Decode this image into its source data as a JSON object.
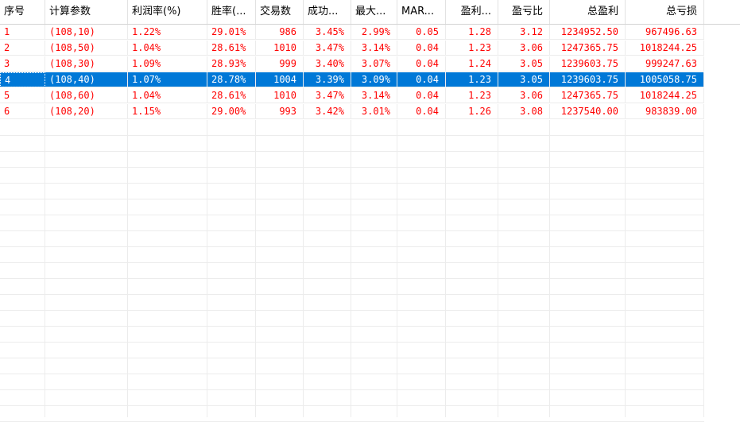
{
  "columns": [
    {
      "label": "序号"
    },
    {
      "label": "计算参数"
    },
    {
      "label": "利润率(%)"
    },
    {
      "label": "胜率(..."
    },
    {
      "label": "交易数"
    },
    {
      "label": "成功..."
    },
    {
      "label": "最大..."
    },
    {
      "label": "MAR..."
    },
    {
      "label": "盈利..."
    },
    {
      "label": "盈亏比"
    },
    {
      "label": "总盈利"
    },
    {
      "label": "总亏损"
    }
  ],
  "rows": [
    {
      "cells": [
        "1",
        "(108,10)",
        "1.22%",
        "29.01%",
        "986",
        "3.45%",
        "2.99%",
        "0.05",
        "1.28",
        "3.12",
        "1234952.50",
        "967496.63"
      ],
      "selected": false
    },
    {
      "cells": [
        "2",
        "(108,50)",
        "1.04%",
        "28.61%",
        "1010",
        "3.47%",
        "3.14%",
        "0.04",
        "1.23",
        "3.06",
        "1247365.75",
        "1018244.25"
      ],
      "selected": false
    },
    {
      "cells": [
        "3",
        "(108,30)",
        "1.09%",
        "28.93%",
        "999",
        "3.40%",
        "3.07%",
        "0.04",
        "1.24",
        "3.05",
        "1239603.75",
        "999247.63"
      ],
      "selected": false
    },
    {
      "cells": [
        "4",
        "(108,40)",
        "1.07%",
        "28.78%",
        "1004",
        "3.39%",
        "3.09%",
        "0.04",
        "1.23",
        "3.05",
        "1239603.75",
        "1005058.75"
      ],
      "selected": true
    },
    {
      "cells": [
        "5",
        "(108,60)",
        "1.04%",
        "28.61%",
        "1010",
        "3.47%",
        "3.14%",
        "0.04",
        "1.23",
        "3.06",
        "1247365.75",
        "1018244.25"
      ],
      "selected": false
    },
    {
      "cells": [
        "6",
        "(108,20)",
        "1.15%",
        "29.00%",
        "993",
        "3.42%",
        "3.01%",
        "0.04",
        "1.26",
        "3.08",
        "1237540.00",
        "983839.00"
      ],
      "selected": false
    }
  ],
  "colors": {
    "text": "#ff0000",
    "selection": "#0078d7",
    "selected_text": "#ffffff",
    "grid": "#ececec"
  }
}
